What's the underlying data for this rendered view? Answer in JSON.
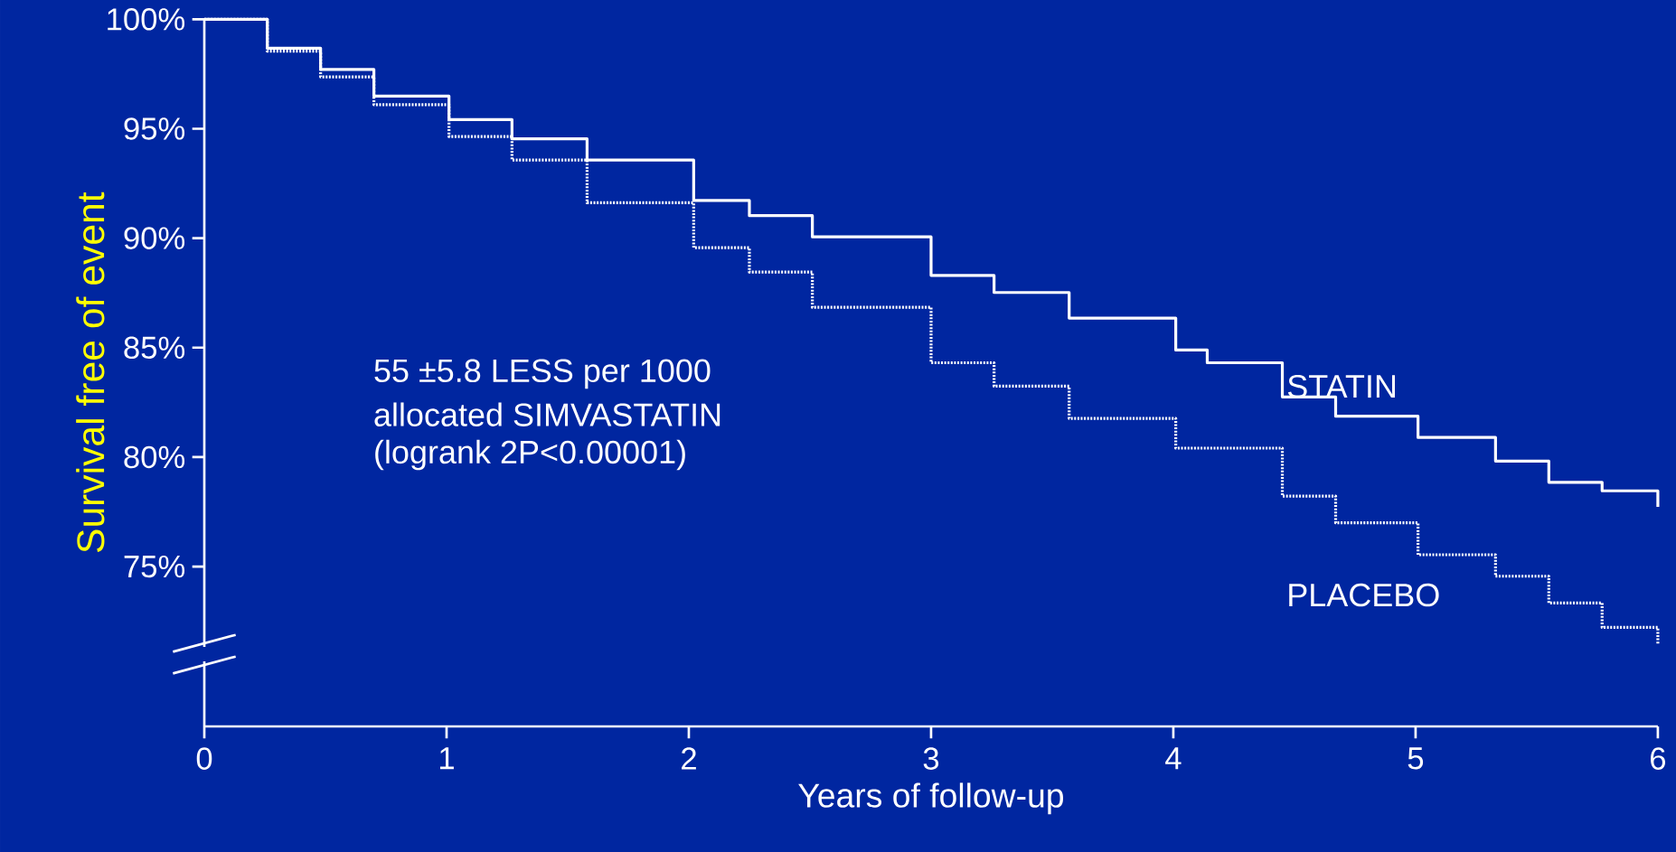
{
  "chart_data": {
    "type": "step",
    "xlabel": "Years of follow-up",
    "ylabel": "Survival free of event",
    "annotations": [
      "55 ±5.8 LESS per 1000",
      "allocated SIMVASTATIN",
      "(logrank 2P<0.00001)"
    ],
    "xlim": [
      0,
      6
    ],
    "ylim": [
      67.7,
      100
    ],
    "xticks": [
      0,
      1,
      2,
      3,
      4,
      5,
      6
    ],
    "yticks": [
      {
        "value": 75,
        "label": "75%"
      },
      {
        "value": 80,
        "label": "80%"
      },
      {
        "value": 85,
        "label": "85%"
      },
      {
        "value": 90,
        "label": "90%"
      },
      {
        "value": 95,
        "label": "95%"
      },
      {
        "value": 100,
        "label": "100%"
      }
    ],
    "series": [
      {
        "name": "STATIN",
        "color": "#ffffff",
        "line_style": "solid",
        "x": [
          0,
          0.26,
          0.48,
          0.7,
          1.01,
          1.27,
          1.58,
          2.02,
          2.25,
          2.51,
          3.0,
          3.26,
          3.57,
          4.01,
          4.14,
          4.45,
          4.67,
          5.01,
          5.33,
          5.55,
          5.77,
          6.0
        ],
        "values": [
          100,
          98.68,
          97.71,
          96.49,
          95.42,
          94.54,
          93.57,
          91.72,
          91.03,
          90.06,
          88.3,
          87.52,
          86.35,
          84.89,
          84.31,
          82.75,
          81.87,
          80.9,
          79.82,
          78.85,
          78.46,
          77.73
        ]
      },
      {
        "name": "PLACEBO",
        "color": "#ffffff",
        "line_style": "dotted",
        "x": [
          0,
          0.26,
          0.48,
          0.7,
          1.01,
          1.27,
          1.58,
          2.02,
          2.25,
          2.51,
          3.0,
          3.26,
          3.57,
          4.01,
          4.45,
          4.67,
          5.01,
          5.33,
          5.55,
          5.77,
          6.0
        ],
        "values": [
          100,
          98.54,
          97.37,
          96.1,
          94.64,
          93.57,
          91.62,
          89.57,
          88.45,
          86.84,
          84.31,
          83.24,
          81.77,
          80.41,
          78.22,
          77.0,
          75.54,
          74.56,
          73.34,
          72.22,
          71.44
        ]
      }
    ]
  }
}
